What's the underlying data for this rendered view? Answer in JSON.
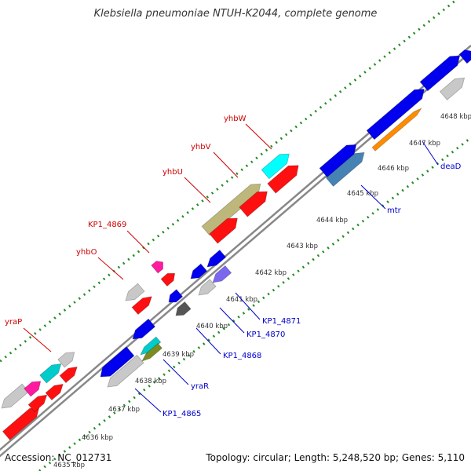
{
  "title": "Klebsiella pneumoniae NTUH-K2044, complete genome",
  "footer": {
    "accession": "Accession: NC_012731",
    "topology": "Topology: circular; Length: 5,248,520 bp; Genes: 5,110"
  },
  "colors": {
    "backbone": "#888888",
    "tick_dots": "#228b22",
    "label_top": "#cc0000",
    "label_bottom": "#0000cc"
  },
  "kbp_ticks": [
    "4635 kbp",
    "4636 kbp",
    "4637 kbp",
    "4638 kbp",
    "4639 kbp",
    "4640 kbp",
    "4641 kbp",
    "4642 kbp",
    "4643 kbp",
    "4644 kbp",
    "4645 kbp",
    "4646 kbp",
    "4647 kbp",
    "4648 kbp"
  ],
  "gene_labels": [
    {
      "text": "yraP",
      "color": "#cc0000"
    },
    {
      "text": "yhbO",
      "color": "#cc0000"
    },
    {
      "text": "KP1_4869",
      "color": "#cc0000"
    },
    {
      "text": "yhbU",
      "color": "#cc0000"
    },
    {
      "text": "yhbV",
      "color": "#cc0000"
    },
    {
      "text": "yhbW",
      "color": "#cc0000"
    },
    {
      "text": "KP1_4865",
      "color": "#0000cc"
    },
    {
      "text": "yraR",
      "color": "#0000cc"
    },
    {
      "text": "KP1_4868",
      "color": "#0000cc"
    },
    {
      "text": "KP1_4870",
      "color": "#0000cc"
    },
    {
      "text": "KP1_4871",
      "color": "#0000cc"
    },
    {
      "text": "mtr",
      "color": "#0000cc"
    },
    {
      "text": "deaD",
      "color": "#0000cc"
    }
  ]
}
